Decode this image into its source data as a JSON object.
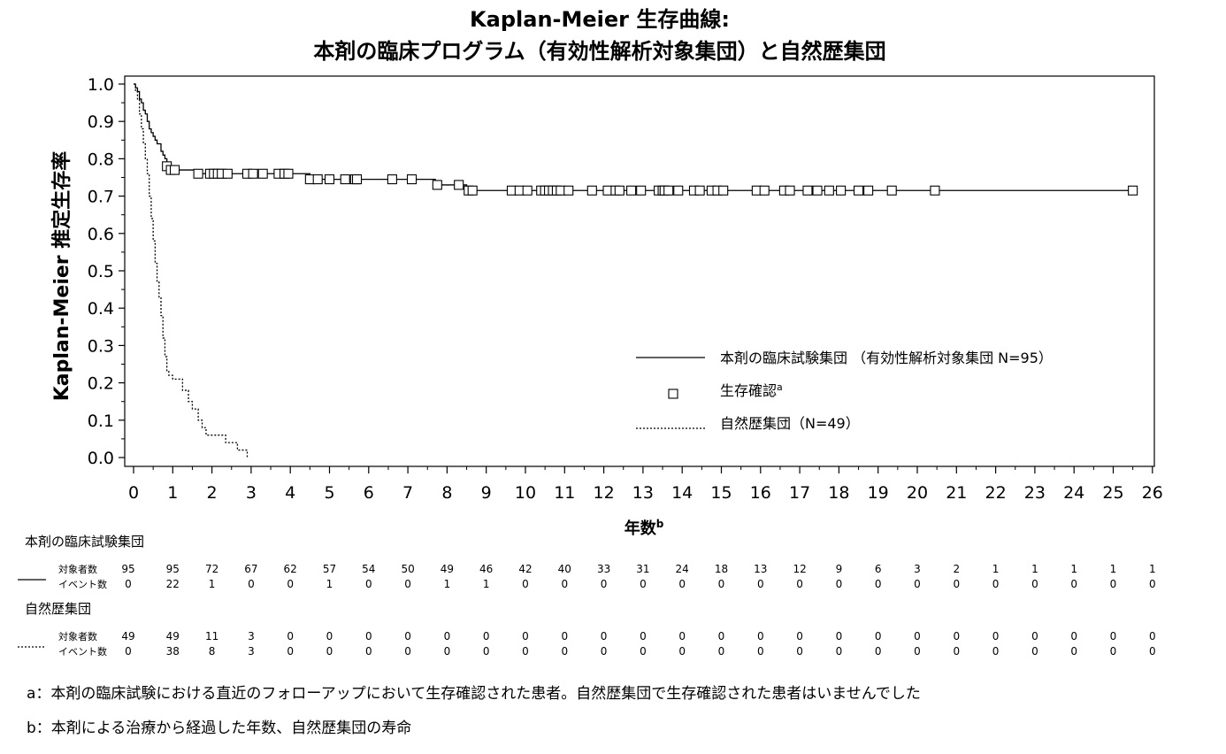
{
  "chart_data": {
    "type": "line",
    "title": "Kaplan-Meier 生存曲線:",
    "subtitle": "本剤の臨床プログラム（有効性解析対象集団）と自然歴集団",
    "xlabel": "年数",
    "xlabel_sup": "b",
    "ylabel": "Kaplan-Meier 推定生存率",
    "xlim": [
      0,
      26
    ],
    "ylim": [
      0,
      1.0
    ],
    "x_ticks": [
      "0",
      "1",
      "2",
      "3",
      "4",
      "5",
      "6",
      "7",
      "8",
      "9",
      "10",
      "11",
      "12",
      "13",
      "14",
      "15",
      "16",
      "17",
      "18",
      "19",
      "20",
      "21",
      "22",
      "23",
      "24",
      "25",
      "26"
    ],
    "y_ticks": [
      "0.0",
      "0.1",
      "0.2",
      "0.3",
      "0.4",
      "0.5",
      "0.6",
      "0.7",
      "0.8",
      "0.9",
      "1.0"
    ],
    "legend_position": "bottom-right",
    "legend": [
      {
        "label": "本剤の臨床試験集団 （有効性解析対象集団 N=95）",
        "style": "solid"
      },
      {
        "label": "生存確認",
        "sup": "a",
        "style": "square-marker"
      },
      {
        "label": "自然歴集団（N=49）",
        "style": "dotted"
      }
    ],
    "series": [
      {
        "name": "本剤の臨床試験集団 （有効性解析対象集団 N=95）",
        "style": "solid",
        "steps": [
          [
            0,
            1.0
          ],
          [
            0.05,
            0.99
          ],
          [
            0.1,
            0.98
          ],
          [
            0.15,
            0.96
          ],
          [
            0.2,
            0.95
          ],
          [
            0.25,
            0.93
          ],
          [
            0.3,
            0.92
          ],
          [
            0.35,
            0.9
          ],
          [
            0.4,
            0.88
          ],
          [
            0.45,
            0.87
          ],
          [
            0.5,
            0.86
          ],
          [
            0.55,
            0.85
          ],
          [
            0.6,
            0.84
          ],
          [
            0.7,
            0.82
          ],
          [
            0.75,
            0.81
          ],
          [
            0.8,
            0.8
          ],
          [
            0.85,
            0.79
          ],
          [
            0.9,
            0.78
          ],
          [
            1.0,
            0.77
          ],
          [
            1.6,
            0.76
          ],
          [
            4.5,
            0.745
          ],
          [
            7.7,
            0.73
          ],
          [
            8.5,
            0.715
          ],
          [
            25.5,
            0.715
          ]
        ],
        "censored": [
          [
            0.85,
            0.78
          ],
          [
            0.95,
            0.77
          ],
          [
            1.05,
            0.77
          ],
          [
            1.65,
            0.76
          ],
          [
            1.95,
            0.76
          ],
          [
            2.05,
            0.76
          ],
          [
            2.15,
            0.76
          ],
          [
            2.25,
            0.76
          ],
          [
            2.4,
            0.76
          ],
          [
            2.9,
            0.76
          ],
          [
            3.05,
            0.76
          ],
          [
            3.3,
            0.76
          ],
          [
            3.7,
            0.76
          ],
          [
            3.85,
            0.76
          ],
          [
            3.95,
            0.76
          ],
          [
            4.5,
            0.745
          ],
          [
            4.7,
            0.745
          ],
          [
            5.0,
            0.745
          ],
          [
            5.4,
            0.745
          ],
          [
            5.65,
            0.745
          ],
          [
            5.7,
            0.745
          ],
          [
            6.6,
            0.745
          ],
          [
            7.1,
            0.745
          ],
          [
            7.75,
            0.73
          ],
          [
            8.3,
            0.73
          ],
          [
            8.55,
            0.715
          ],
          [
            8.65,
            0.715
          ],
          [
            9.65,
            0.715
          ],
          [
            9.85,
            0.715
          ],
          [
            10.05,
            0.715
          ],
          [
            10.4,
            0.715
          ],
          [
            10.5,
            0.715
          ],
          [
            10.6,
            0.715
          ],
          [
            10.7,
            0.715
          ],
          [
            10.8,
            0.715
          ],
          [
            10.9,
            0.715
          ],
          [
            11.1,
            0.715
          ],
          [
            11.7,
            0.715
          ],
          [
            12.1,
            0.715
          ],
          [
            12.3,
            0.715
          ],
          [
            12.4,
            0.715
          ],
          [
            12.7,
            0.715
          ],
          [
            12.95,
            0.715
          ],
          [
            13.4,
            0.715
          ],
          [
            13.5,
            0.715
          ],
          [
            13.55,
            0.715
          ],
          [
            13.65,
            0.715
          ],
          [
            13.9,
            0.715
          ],
          [
            14.3,
            0.715
          ],
          [
            14.45,
            0.715
          ],
          [
            14.75,
            0.715
          ],
          [
            14.9,
            0.715
          ],
          [
            15.05,
            0.715
          ],
          [
            15.9,
            0.715
          ],
          [
            16.1,
            0.715
          ],
          [
            16.6,
            0.715
          ],
          [
            16.75,
            0.715
          ],
          [
            17.2,
            0.715
          ],
          [
            17.45,
            0.715
          ],
          [
            17.75,
            0.715
          ],
          [
            18.05,
            0.715
          ],
          [
            18.5,
            0.715
          ],
          [
            18.75,
            0.715
          ],
          [
            19.35,
            0.715
          ],
          [
            20.45,
            0.715
          ],
          [
            25.5,
            0.715
          ]
        ]
      },
      {
        "name": "自然歴集団（N=49）",
        "style": "dotted",
        "steps": [
          [
            0,
            1.0
          ],
          [
            0.05,
            0.98
          ],
          [
            0.1,
            0.96
          ],
          [
            0.15,
            0.92
          ],
          [
            0.2,
            0.88
          ],
          [
            0.25,
            0.84
          ],
          [
            0.3,
            0.8
          ],
          [
            0.35,
            0.76
          ],
          [
            0.4,
            0.7
          ],
          [
            0.45,
            0.64
          ],
          [
            0.5,
            0.58
          ],
          [
            0.55,
            0.52
          ],
          [
            0.6,
            0.47
          ],
          [
            0.65,
            0.43
          ],
          [
            0.7,
            0.38
          ],
          [
            0.75,
            0.32
          ],
          [
            0.8,
            0.27
          ],
          [
            0.85,
            0.23
          ],
          [
            0.9,
            0.22
          ],
          [
            1.0,
            0.21
          ],
          [
            1.25,
            0.18
          ],
          [
            1.4,
            0.15
          ],
          [
            1.5,
            0.13
          ],
          [
            1.65,
            0.1
          ],
          [
            1.75,
            0.08
          ],
          [
            1.85,
            0.06
          ],
          [
            2.35,
            0.04
          ],
          [
            2.65,
            0.02
          ],
          [
            2.9,
            0.0
          ]
        ]
      }
    ]
  },
  "risk_table": {
    "groups": [
      {
        "name": "本剤の臨床試験集団",
        "style": "solid",
        "rows": [
          {
            "label": "対象者数",
            "values": [
              "95",
              "95",
              "72",
              "67",
              "62",
              "57",
              "54",
              "50",
              "49",
              "46",
              "42",
              "40",
              "33",
              "31",
              "24",
              "18",
              "13",
              "12",
              "9",
              "6",
              "3",
              "2",
              "1",
              "1",
              "1",
              "1",
              "1"
            ]
          },
          {
            "label": "イベント数",
            "values": [
              "0",
              "22",
              "1",
              "0",
              "0",
              "1",
              "0",
              "0",
              "1",
              "1",
              "0",
              "0",
              "0",
              "0",
              "0",
              "0",
              "0",
              "0",
              "0",
              "0",
              "0",
              "0",
              "0",
              "0",
              "0",
              "0",
              "0"
            ]
          }
        ]
      },
      {
        "name": "自然歴集団",
        "style": "dotted",
        "rows": [
          {
            "label": "対象者数",
            "values": [
              "49",
              "49",
              "11",
              "3",
              "0",
              "0",
              "0",
              "0",
              "0",
              "0",
              "0",
              "0",
              "0",
              "0",
              "0",
              "0",
              "0",
              "0",
              "0",
              "0",
              "0",
              "0",
              "0",
              "0",
              "0",
              "0",
              "0"
            ]
          },
          {
            "label": "イベント数",
            "values": [
              "0",
              "38",
              "8",
              "3",
              "0",
              "0",
              "0",
              "0",
              "0",
              "0",
              "0",
              "0",
              "0",
              "0",
              "0",
              "0",
              "0",
              "0",
              "0",
              "0",
              "0",
              "0",
              "0",
              "0",
              "0",
              "0",
              "0"
            ]
          }
        ]
      }
    ]
  },
  "footnotes": {
    "a": "a：本剤の臨床試験における直近のフォローアップにおいて生存確認された患者。自然歴集団で生存確認された患者はいませんでした",
    "b": "b：本剤による治療から経過した年数、自然歴集団の寿命"
  }
}
